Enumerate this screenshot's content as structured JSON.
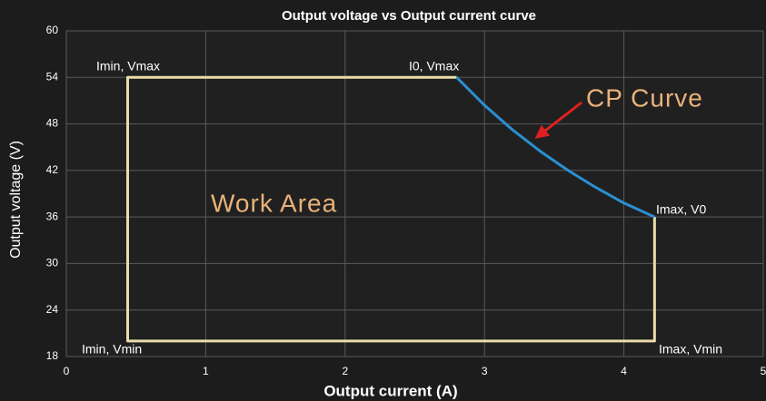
{
  "chart_data": {
    "type": "line",
    "title": "Output voltage vs Output current curve",
    "x_label": "Output current (A)",
    "y_label": "Output voltage (V)",
    "xlim": [
      0,
      5
    ],
    "xticks": [
      0,
      1,
      2,
      3,
      4,
      5
    ],
    "ylim": [
      18,
      60
    ],
    "yticks": [
      18,
      24,
      30,
      36,
      42,
      48,
      54,
      60
    ],
    "grid": true,
    "series": [
      {
        "name": "Work Area",
        "color": "#eadcaa",
        "x": [
          4.22,
          4.22,
          0.44,
          0.44,
          2.8
        ],
        "values": [
          36,
          20,
          20,
          54,
          54
        ]
      },
      {
        "name": "CP Curve",
        "color": "#2b8fd2",
        "x": [
          2.8,
          3.0,
          3.2,
          3.4,
          3.6,
          3.8,
          4.0,
          4.22
        ],
        "values": [
          54,
          50.4,
          47.25,
          44.47,
          42,
          39.79,
          37.8,
          36
        ]
      }
    ],
    "annotations": [
      "Imin, Vmax",
      "I0, Vmax",
      "Imax, V0",
      "Imin, Vmin",
      "Imax, Vmin"
    ]
  }
}
